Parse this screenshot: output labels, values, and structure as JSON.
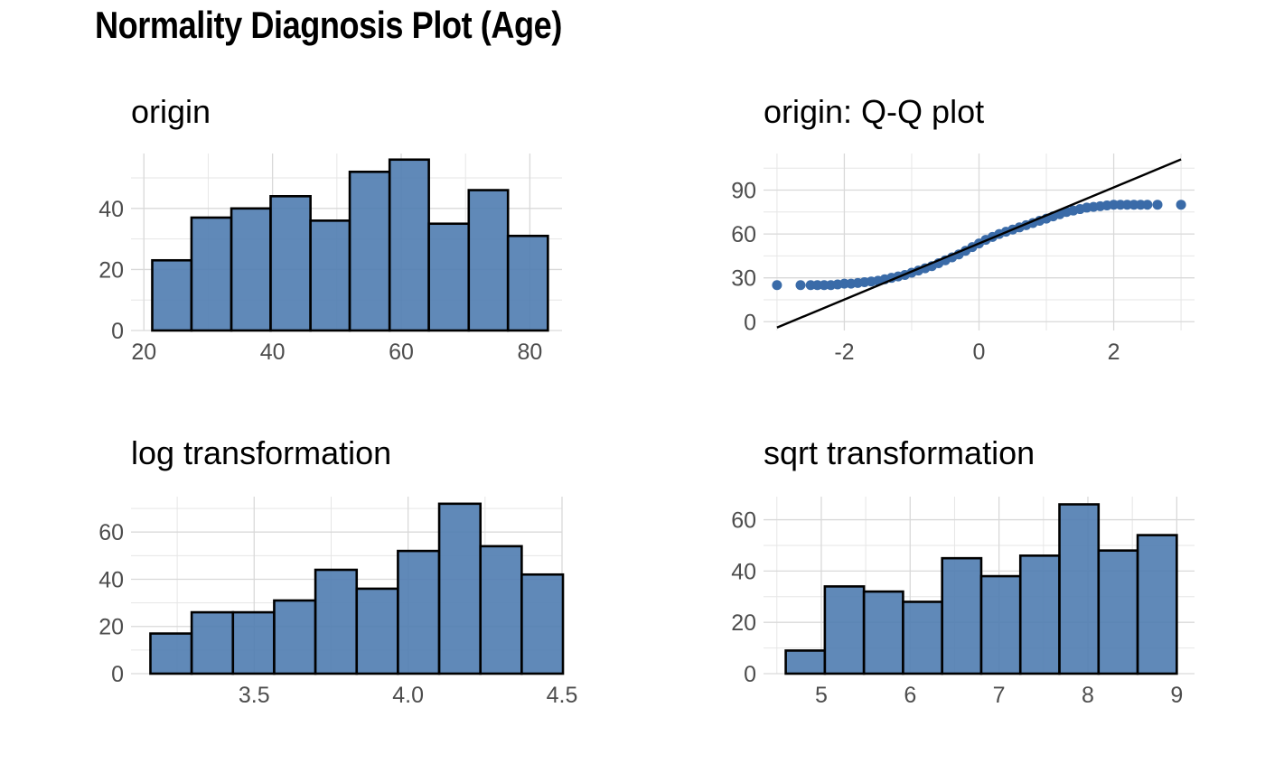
{
  "title": "Normality Diagnosis Plot (Age)",
  "colors": {
    "fill": "#4F7CB0",
    "stroke": "#000000",
    "point": "#3A6BA8",
    "grid": "#D9D9D9",
    "line": "#000000"
  },
  "chart_data": [
    {
      "id": "origin",
      "type": "bar",
      "title": "origin",
      "xlim": [
        18,
        85
      ],
      "ylim": [
        0,
        58
      ],
      "xticks": [
        20,
        40,
        60,
        80
      ],
      "yticks": [
        0,
        20,
        40
      ],
      "bins": [
        {
          "x0": 21.3,
          "x1": 27.4,
          "count": 23
        },
        {
          "x0": 27.4,
          "x1": 33.6,
          "count": 37
        },
        {
          "x0": 33.6,
          "x1": 39.7,
          "count": 40
        },
        {
          "x0": 39.7,
          "x1": 45.9,
          "count": 44
        },
        {
          "x0": 45.9,
          "x1": 52.0,
          "count": 36
        },
        {
          "x0": 52.0,
          "x1": 58.2,
          "count": 52
        },
        {
          "x0": 58.2,
          "x1": 64.3,
          "count": 56
        },
        {
          "x0": 64.3,
          "x1": 70.5,
          "count": 35
        },
        {
          "x0": 70.5,
          "x1": 76.6,
          "count": 46
        },
        {
          "x0": 76.6,
          "x1": 82.8,
          "count": 31
        }
      ]
    },
    {
      "id": "qq",
      "type": "scatter",
      "title": "origin: Q-Q plot",
      "xlim": [
        -3.2,
        3.2
      ],
      "ylim": [
        -6,
        115
      ],
      "xticks": [
        -2,
        0,
        2
      ],
      "xtick_labels": [
        "-2",
        "0",
        "2"
      ],
      "yticks": [
        0,
        30,
        60,
        90
      ],
      "reference_line": {
        "x": [
          -3.0,
          3.0
        ],
        "y": [
          -4,
          111
        ]
      },
      "points": [
        [
          -3.0,
          25
        ],
        [
          -2.65,
          25
        ],
        [
          -2.5,
          25
        ],
        [
          -2.4,
          25
        ],
        [
          -2.3,
          25
        ],
        [
          -2.2,
          25
        ],
        [
          -2.1,
          25.5
        ],
        [
          -2.0,
          26
        ],
        [
          -1.9,
          26
        ],
        [
          -1.8,
          26.5
        ],
        [
          -1.7,
          27
        ],
        [
          -1.6,
          27.5
        ],
        [
          -1.5,
          28
        ],
        [
          -1.4,
          29
        ],
        [
          -1.3,
          30
        ],
        [
          -1.2,
          31
        ],
        [
          -1.1,
          32
        ],
        [
          -1.0,
          33.5
        ],
        [
          -0.9,
          35
        ],
        [
          -0.8,
          36.5
        ],
        [
          -0.7,
          38
        ],
        [
          -0.6,
          40
        ],
        [
          -0.5,
          42
        ],
        [
          -0.4,
          44
        ],
        [
          -0.3,
          46
        ],
        [
          -0.2,
          48.5
        ],
        [
          -0.1,
          51
        ],
        [
          0.0,
          53.5
        ],
        [
          0.1,
          56
        ],
        [
          0.2,
          58
        ],
        [
          0.3,
          60
        ],
        [
          0.4,
          61.5
        ],
        [
          0.5,
          63
        ],
        [
          0.6,
          64.5
        ],
        [
          0.7,
          66
        ],
        [
          0.8,
          67.5
        ],
        [
          0.9,
          69
        ],
        [
          1.0,
          70.5
        ],
        [
          1.1,
          72
        ],
        [
          1.2,
          73.5
        ],
        [
          1.3,
          75
        ],
        [
          1.4,
          76
        ],
        [
          1.5,
          77
        ],
        [
          1.6,
          78
        ],
        [
          1.7,
          78.5
        ],
        [
          1.8,
          79
        ],
        [
          1.9,
          79.5
        ],
        [
          2.0,
          80
        ],
        [
          2.1,
          80
        ],
        [
          2.2,
          80
        ],
        [
          2.3,
          80
        ],
        [
          2.4,
          80
        ],
        [
          2.5,
          80
        ],
        [
          2.65,
          80
        ],
        [
          3.0,
          80
        ]
      ]
    },
    {
      "id": "log",
      "type": "bar",
      "title": "log transformation",
      "xlim": [
        3.1,
        4.5
      ],
      "ylim": [
        0,
        75
      ],
      "xticks": [
        3.5,
        4.0,
        4.5
      ],
      "xtick_labels": [
        "3.5",
        "4.0",
        "4.5"
      ],
      "yticks": [
        0,
        20,
        40,
        60
      ],
      "bins": [
        {
          "x0": 3.163,
          "x1": 3.297,
          "count": 17
        },
        {
          "x0": 3.297,
          "x1": 3.431,
          "count": 26
        },
        {
          "x0": 3.431,
          "x1": 3.565,
          "count": 26
        },
        {
          "x0": 3.565,
          "x1": 3.699,
          "count": 31
        },
        {
          "x0": 3.699,
          "x1": 3.833,
          "count": 44
        },
        {
          "x0": 3.833,
          "x1": 3.967,
          "count": 36
        },
        {
          "x0": 3.967,
          "x1": 4.101,
          "count": 52
        },
        {
          "x0": 4.101,
          "x1": 4.235,
          "count": 72
        },
        {
          "x0": 4.235,
          "x1": 4.369,
          "count": 54
        },
        {
          "x0": 4.369,
          "x1": 4.503,
          "count": 42
        }
      ]
    },
    {
      "id": "sqrt",
      "type": "bar",
      "title": "sqrt transformation",
      "xlim": [
        4.35,
        9.2
      ],
      "ylim": [
        0,
        69
      ],
      "xticks": [
        5,
        6,
        7,
        8,
        9
      ],
      "yticks": [
        0,
        20,
        40,
        60
      ],
      "bins": [
        {
          "x0": 4.6,
          "x1": 5.04,
          "count": 9
        },
        {
          "x0": 5.04,
          "x1": 5.48,
          "count": 34
        },
        {
          "x0": 5.48,
          "x1": 5.92,
          "count": 32
        },
        {
          "x0": 5.92,
          "x1": 6.36,
          "count": 28
        },
        {
          "x0": 6.36,
          "x1": 6.8,
          "count": 45
        },
        {
          "x0": 6.8,
          "x1": 7.24,
          "count": 38
        },
        {
          "x0": 7.24,
          "x1": 7.68,
          "count": 46
        },
        {
          "x0": 7.68,
          "x1": 8.12,
          "count": 66
        },
        {
          "x0": 8.12,
          "x1": 8.56,
          "count": 48
        },
        {
          "x0": 8.56,
          "x1": 9.0,
          "count": 54
        }
      ]
    }
  ]
}
